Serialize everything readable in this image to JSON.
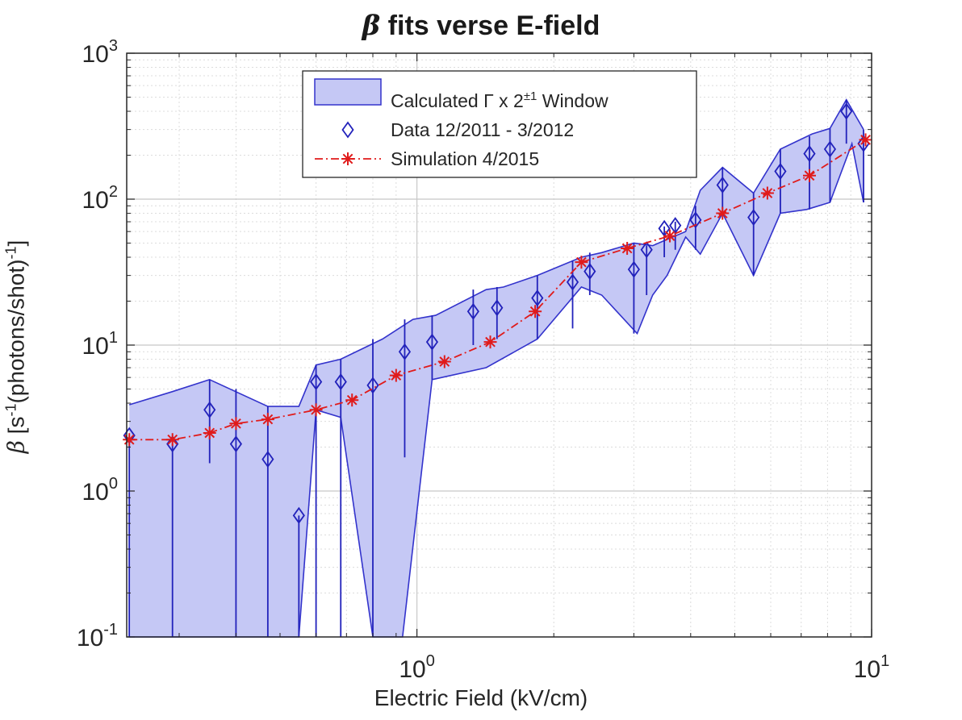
{
  "chart_data": {
    "type": "line",
    "title_symbol": "β",
    "title_text": " fits verse E-field",
    "xlabel": "Electric Field (kV/cm)",
    "ylabel_symbol": "β",
    "ylabel_parts": [
      " [s",
      "-1",
      "(photons/shot)",
      "-1",
      "]"
    ],
    "x_scale": "log",
    "y_scale": "log",
    "xlim": [
      0.23,
      10
    ],
    "ylim": [
      0.1,
      1000
    ],
    "grid": true,
    "legend_position": "top-center",
    "x_ticks": [
      {
        "base": "10",
        "exp": "0",
        "value": 1
      },
      {
        "base": "10",
        "exp": "1",
        "value": 10
      }
    ],
    "y_ticks": [
      {
        "base": "10",
        "exp": "-1",
        "value": 0.1
      },
      {
        "base": "10",
        "exp": "0",
        "value": 1
      },
      {
        "base": "10",
        "exp": "1",
        "value": 10
      },
      {
        "base": "10",
        "exp": "2",
        "value": 100
      },
      {
        "base": "10",
        "exp": "3",
        "value": 1000
      }
    ],
    "series": [
      {
        "name_parts": [
          "Calculated ",
          "Γ",
          " x 2",
          "±1",
          " Window"
        ],
        "kind": "band",
        "color": "#3333cc",
        "fill": "#c5c8f5",
        "upper": [
          [
            0.233,
            3.9
          ],
          [
            0.29,
            4.8
          ],
          [
            0.35,
            5.8
          ],
          [
            0.47,
            3.8
          ],
          [
            0.55,
            3.8
          ],
          [
            0.6,
            7.3
          ],
          [
            0.68,
            8
          ],
          [
            0.84,
            11
          ],
          [
            0.98,
            15
          ],
          [
            1.1,
            16
          ],
          [
            1.42,
            24
          ],
          [
            1.55,
            25
          ],
          [
            1.84,
            30
          ],
          [
            2.3,
            40
          ],
          [
            2.55,
            43
          ],
          [
            3.0,
            50
          ],
          [
            3.3,
            48
          ],
          [
            3.55,
            53
          ],
          [
            3.9,
            60
          ],
          [
            4.2,
            115
          ],
          [
            4.7,
            165
          ],
          [
            5.5,
            110
          ],
          [
            6.3,
            220
          ],
          [
            7.4,
            280
          ],
          [
            8.1,
            305
          ],
          [
            8.8,
            480
          ],
          [
            9.6,
            300
          ]
        ],
        "lower": [
          [
            9.6,
            95
          ],
          [
            9.05,
            240
          ],
          [
            8.1,
            95
          ],
          [
            7.2,
            85
          ],
          [
            6.3,
            80
          ],
          [
            5.5,
            30
          ],
          [
            4.7,
            80
          ],
          [
            4.2,
            42
          ],
          [
            3.9,
            55
          ],
          [
            3.55,
            30
          ],
          [
            3.3,
            22
          ],
          [
            3.05,
            12
          ],
          [
            2.55,
            22
          ],
          [
            2.3,
            25
          ],
          [
            1.84,
            11
          ],
          [
            1.42,
            7
          ],
          [
            1.08,
            5.8
          ],
          [
            0.93,
            0.1
          ],
          [
            0.8,
            0.1
          ],
          [
            0.68,
            3.2
          ],
          [
            0.6,
            3.6
          ],
          [
            0.55,
            0.1
          ],
          [
            0.233,
            0.1
          ]
        ]
      },
      {
        "name": "Data 12/2011 - 3/2012",
        "kind": "markers",
        "marker": "diamond",
        "color": "#2222bb",
        "points": [
          {
            "x": 0.233,
            "y": 2.4,
            "lo": 0.1,
            "hi": 2.4
          },
          {
            "x": 0.29,
            "y": 2.1,
            "lo": 0.1,
            "hi": 2.1
          },
          {
            "x": 0.35,
            "y": 3.6,
            "lo": 1.55,
            "hi": 5.8
          },
          {
            "x": 0.4,
            "y": 2.1,
            "lo": 0.1,
            "hi": 5.0
          },
          {
            "x": 0.47,
            "y": 1.65,
            "lo": 0.1,
            "hi": 3.8
          },
          {
            "x": 0.55,
            "y": 0.68,
            "lo": 0.1,
            "hi": 0.68
          },
          {
            "x": 0.6,
            "y": 5.6,
            "lo": 0.1,
            "hi": 7.3
          },
          {
            "x": 0.68,
            "y": 5.6,
            "lo": 0.1,
            "hi": 8.0
          },
          {
            "x": 0.8,
            "y": 5.3,
            "lo": 0.1,
            "hi": 11
          },
          {
            "x": 0.94,
            "y": 9.0,
            "lo": 1.7,
            "hi": 15
          },
          {
            "x": 1.08,
            "y": 10.5,
            "lo": 5.8,
            "hi": 16
          },
          {
            "x": 1.33,
            "y": 17,
            "lo": 10,
            "hi": 24
          },
          {
            "x": 1.5,
            "y": 18,
            "lo": 11,
            "hi": 25
          },
          {
            "x": 1.84,
            "y": 21,
            "lo": 11,
            "hi": 30
          },
          {
            "x": 2.2,
            "y": 27,
            "lo": 13,
            "hi": 38
          },
          {
            "x": 2.4,
            "y": 32,
            "lo": 22,
            "hi": 43
          },
          {
            "x": 3.0,
            "y": 33,
            "lo": 12,
            "hi": 50
          },
          {
            "x": 3.2,
            "y": 45,
            "lo": 22,
            "hi": 48
          },
          {
            "x": 3.5,
            "y": 63,
            "lo": 40,
            "hi": 65
          },
          {
            "x": 3.7,
            "y": 66,
            "lo": 45,
            "hi": 70
          },
          {
            "x": 4.1,
            "y": 72,
            "lo": 45,
            "hi": 90
          },
          {
            "x": 4.7,
            "y": 125,
            "lo": 80,
            "hi": 165
          },
          {
            "x": 5.5,
            "y": 75,
            "lo": 30,
            "hi": 110
          },
          {
            "x": 6.3,
            "y": 155,
            "lo": 80,
            "hi": 220
          },
          {
            "x": 7.3,
            "y": 205,
            "lo": 85,
            "hi": 270
          },
          {
            "x": 8.1,
            "y": 220,
            "lo": 95,
            "hi": 305
          },
          {
            "x": 8.8,
            "y": 400,
            "lo": 240,
            "hi": 480
          },
          {
            "x": 9.6,
            "y": 240,
            "lo": 95,
            "hi": 300
          }
        ]
      },
      {
        "name": "Simulation 4/2015",
        "kind": "line",
        "marker": "asterisk",
        "line_style": "dash-dot",
        "color": "#e01b1b",
        "points": [
          [
            0.233,
            2.25
          ],
          [
            0.29,
            2.25
          ],
          [
            0.35,
            2.5
          ],
          [
            0.4,
            2.9
          ],
          [
            0.47,
            3.1
          ],
          [
            0.6,
            3.6
          ],
          [
            0.72,
            4.2
          ],
          [
            0.9,
            6.2
          ],
          [
            1.15,
            7.7
          ],
          [
            1.45,
            10.5
          ],
          [
            1.82,
            17
          ],
          [
            2.3,
            37
          ],
          [
            2.9,
            46
          ],
          [
            3.6,
            56
          ],
          [
            4.7,
            80
          ],
          [
            5.9,
            110
          ],
          [
            7.3,
            145
          ],
          [
            9.7,
            255
          ]
        ]
      }
    ]
  }
}
